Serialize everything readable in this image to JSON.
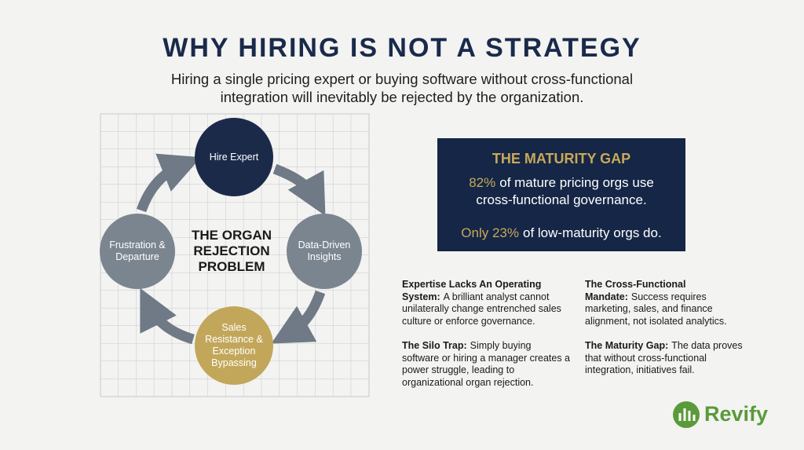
{
  "header": {
    "title": "WHY HIRING IS NOT A STRATEGY",
    "subtitle": "Hiring a single pricing expert or buying software without cross-functional integration will inevitably be rejected by the organization."
  },
  "cycle": {
    "center_label": "THE ORGAN REJECTION PROBLEM",
    "nodes": [
      {
        "label": "Hire Expert"
      },
      {
        "label": "Data-Driven Insights"
      },
      {
        "label": "Sales Resistance & Exception Bypassing"
      },
      {
        "label": "Frustration & Departure"
      }
    ]
  },
  "maturity_box": {
    "title": "THE MATURITY GAP",
    "stats": [
      {
        "highlight": "82%",
        "text": "of mature pricing orgs use cross-functional governance."
      },
      {
        "highlight": "Only 23%",
        "text": "of low-maturity orgs do."
      }
    ]
  },
  "points": [
    {
      "lead": "Expertise Lacks An Operating System:",
      "text": "A brilliant analyst cannot unilaterally change entrenched sales culture or enforce governance."
    },
    {
      "lead": "The Cross-Functional Mandate:",
      "text": "Success requires marketing, sales, and finance alignment, not isolated analytics."
    },
    {
      "lead": "The Silo Trap:",
      "text": "Simply buying software or hiring a manager creates a power struggle, leading to organizational organ rejection."
    },
    {
      "lead": "The Maturity Gap:",
      "text": "The data proves that without cross-functional integration, initiatives fail."
    }
  ],
  "logo": {
    "name": "Revify"
  }
}
